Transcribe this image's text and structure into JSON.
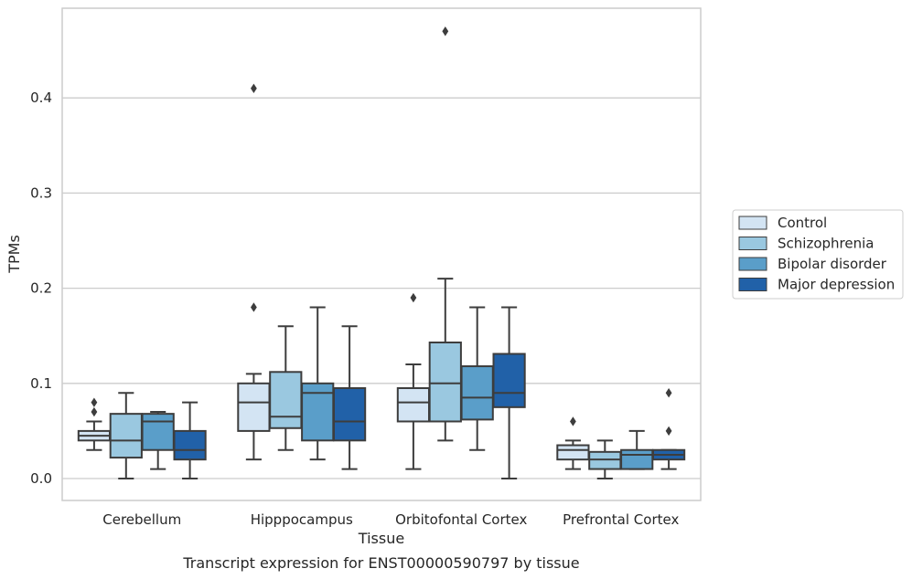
{
  "chart_data": {
    "type": "box",
    "title": "",
    "caption": "Transcript expression for ENST00000590797 by tissue",
    "xlabel": "Tissue",
    "ylabel": "TPMs",
    "ylim": [
      -0.023,
      0.494
    ],
    "yticks": [
      0.0,
      0.1,
      0.2,
      0.3,
      0.4
    ],
    "ytick_labels": [
      "0.0",
      "0.1",
      "0.2",
      "0.3",
      "0.4"
    ],
    "grid": "horizontal",
    "legend_position": "right",
    "categories": [
      "Cerebellum",
      "Hipppocampus",
      "Orbitofontal Cortex",
      "Prefrontal Cortex"
    ],
    "series": [
      {
        "name": "Control",
        "color": "#d3e4f3",
        "boxes": [
          {
            "whislo": 0.03,
            "q1": 0.04,
            "med": 0.045,
            "q3": 0.05,
            "whishi": 0.06,
            "fliers": [
              0.07,
              0.08
            ]
          },
          {
            "whislo": 0.02,
            "q1": 0.05,
            "med": 0.08,
            "q3": 0.1,
            "whishi": 0.11,
            "fliers": [
              0.18,
              0.41
            ]
          },
          {
            "whislo": 0.01,
            "q1": 0.06,
            "med": 0.08,
            "q3": 0.095,
            "whishi": 0.12,
            "fliers": [
              0.19
            ]
          },
          {
            "whislo": 0.01,
            "q1": 0.02,
            "med": 0.03,
            "q3": 0.035,
            "whishi": 0.04,
            "fliers": [
              0.06
            ]
          }
        ]
      },
      {
        "name": "Schizophrenia",
        "color": "#9ac8e0",
        "boxes": [
          {
            "whislo": 0.0,
            "q1": 0.022,
            "med": 0.04,
            "q3": 0.068,
            "whishi": 0.09,
            "fliers": []
          },
          {
            "whislo": 0.03,
            "q1": 0.053,
            "med": 0.065,
            "q3": 0.112,
            "whishi": 0.16,
            "fliers": []
          },
          {
            "whislo": 0.04,
            "q1": 0.06,
            "med": 0.1,
            "q3": 0.143,
            "whishi": 0.21,
            "fliers": [
              0.47
            ]
          },
          {
            "whislo": 0.0,
            "q1": 0.01,
            "med": 0.02,
            "q3": 0.028,
            "whishi": 0.04,
            "fliers": []
          }
        ]
      },
      {
        "name": "Bipolar disorder",
        "color": "#5a9ec9",
        "boxes": [
          {
            "whislo": 0.01,
            "q1": 0.03,
            "med": 0.06,
            "q3": 0.068,
            "whishi": 0.07,
            "fliers": []
          },
          {
            "whislo": 0.02,
            "q1": 0.04,
            "med": 0.09,
            "q3": 0.1,
            "whishi": 0.18,
            "fliers": []
          },
          {
            "whislo": 0.03,
            "q1": 0.062,
            "med": 0.085,
            "q3": 0.118,
            "whishi": 0.18,
            "fliers": []
          },
          {
            "whislo": 0.01,
            "q1": 0.01,
            "med": 0.025,
            "q3": 0.03,
            "whishi": 0.05,
            "fliers": []
          }
        ]
      },
      {
        "name": "Major depression",
        "color": "#2161a8",
        "boxes": [
          {
            "whislo": 0.0,
            "q1": 0.02,
            "med": 0.03,
            "q3": 0.05,
            "whishi": 0.08,
            "fliers": []
          },
          {
            "whislo": 0.01,
            "q1": 0.04,
            "med": 0.06,
            "q3": 0.095,
            "whishi": 0.16,
            "fliers": []
          },
          {
            "whislo": 0.0,
            "q1": 0.075,
            "med": 0.09,
            "q3": 0.131,
            "whishi": 0.18,
            "fliers": []
          },
          {
            "whislo": 0.01,
            "q1": 0.02,
            "med": 0.025,
            "q3": 0.03,
            "whishi": 0.03,
            "fliers": [
              0.05,
              0.09
            ]
          }
        ]
      }
    ]
  }
}
